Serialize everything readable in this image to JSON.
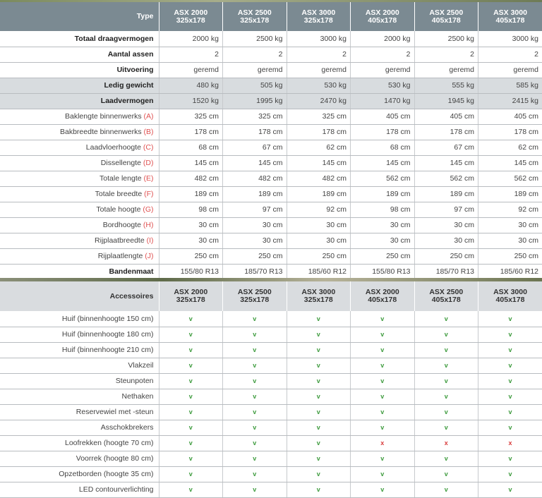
{
  "specs": {
    "header": {
      "label": "Type",
      "models": [
        {
          "name": "ASX 2000",
          "size": "325x178"
        },
        {
          "name": "ASX 2500",
          "size": "325x178"
        },
        {
          "name": "ASX 3000",
          "size": "325x178"
        },
        {
          "name": "ASX 2000",
          "size": "405x178"
        },
        {
          "name": "ASX 2500",
          "size": "405x178"
        },
        {
          "name": "ASX 3000",
          "size": "405x178"
        }
      ]
    },
    "rows": [
      {
        "label": "Totaal draagvermogen",
        "letter": "",
        "bold": true,
        "hl": false,
        "values": [
          "2000 kg",
          "2500 kg",
          "3000 kg",
          "2000 kg",
          "2500 kg",
          "3000 kg"
        ]
      },
      {
        "label": "Aantal assen",
        "letter": "",
        "bold": true,
        "hl": false,
        "values": [
          "2",
          "2",
          "2",
          "2",
          "2",
          "2"
        ]
      },
      {
        "label": "Uitvoering",
        "letter": "",
        "bold": true,
        "hl": false,
        "values": [
          "geremd",
          "geremd",
          "geremd",
          "geremd",
          "geremd",
          "geremd"
        ]
      },
      {
        "label": "Ledig gewicht",
        "letter": "",
        "bold": true,
        "hl": true,
        "values": [
          "480 kg",
          "505 kg",
          "530 kg",
          "530 kg",
          "555 kg",
          "585 kg"
        ]
      },
      {
        "label": "Laadvermogen",
        "letter": "",
        "bold": true,
        "hl": true,
        "values": [
          "1520 kg",
          "1995 kg",
          "2470 kg",
          "1470 kg",
          "1945 kg",
          "2415 kg"
        ]
      },
      {
        "label": "Baklengte binnenwerks ",
        "letter": "(A)",
        "bold": false,
        "hl": false,
        "values": [
          "325 cm",
          "325 cm",
          "325 cm",
          "405 cm",
          "405 cm",
          "405 cm"
        ]
      },
      {
        "label": "Bakbreedte binnenwerks ",
        "letter": "(B)",
        "bold": false,
        "hl": false,
        "values": [
          "178 cm",
          "178 cm",
          "178 cm",
          "178 cm",
          "178 cm",
          "178 cm"
        ]
      },
      {
        "label": "Laadvloerhoogte ",
        "letter": "(C)",
        "bold": false,
        "hl": false,
        "values": [
          "68 cm",
          "67 cm",
          "62 cm",
          "68 cm",
          "67 cm",
          "62 cm"
        ]
      },
      {
        "label": "Dissellengte ",
        "letter": "(D)",
        "bold": false,
        "hl": false,
        "values": [
          "145 cm",
          "145 cm",
          "145 cm",
          "145 cm",
          "145 cm",
          "145 cm"
        ]
      },
      {
        "label": "Totale lengte ",
        "letter": "(E)",
        "bold": false,
        "hl": false,
        "values": [
          "482 cm",
          "482 cm",
          "482 cm",
          "562 cm",
          "562 cm",
          "562 cm"
        ]
      },
      {
        "label": "Totale breedte ",
        "letter": "(F)",
        "bold": false,
        "hl": false,
        "values": [
          "189 cm",
          "189 cm",
          "189 cm",
          "189 cm",
          "189 cm",
          "189 cm"
        ]
      },
      {
        "label": "Totale hoogte ",
        "letter": "(G)",
        "bold": false,
        "hl": false,
        "values": [
          "98 cm",
          "97 cm",
          "92 cm",
          "98 cm",
          "97 cm",
          "92 cm"
        ]
      },
      {
        "label": "Bordhoogte ",
        "letter": "(H)",
        "bold": false,
        "hl": false,
        "values": [
          "30 cm",
          "30 cm",
          "30 cm",
          "30 cm",
          "30 cm",
          "30 cm"
        ]
      },
      {
        "label": "Rijplaatbreedte ",
        "letter": "(I)",
        "bold": false,
        "hl": false,
        "values": [
          "30 cm",
          "30 cm",
          "30 cm",
          "30 cm",
          "30 cm",
          "30 cm"
        ]
      },
      {
        "label": "Rijplaatlengte ",
        "letter": "(J)",
        "bold": false,
        "hl": false,
        "values": [
          "250 cm",
          "250 cm",
          "250 cm",
          "250 cm",
          "250 cm",
          "250 cm"
        ]
      },
      {
        "label": "Bandenmaat",
        "letter": "",
        "bold": true,
        "hl": false,
        "values": [
          "155/80 R13",
          "185/70 R13",
          "185/60 R12",
          "155/80 R13",
          "185/70 R13",
          "185/60 R12"
        ]
      }
    ]
  },
  "accessories": {
    "header": {
      "label": "Accessoires",
      "models": [
        {
          "name": "ASX 2000",
          "size": "325x178"
        },
        {
          "name": "ASX 2500",
          "size": "325x178"
        },
        {
          "name": "ASX 3000",
          "size": "325x178"
        },
        {
          "name": "ASX 2000",
          "size": "405x178"
        },
        {
          "name": "ASX 2500",
          "size": "405x178"
        },
        {
          "name": "ASX 3000",
          "size": "405x178"
        }
      ]
    },
    "rows": [
      {
        "label": "Huif (binnenhoogte 150 cm)",
        "values": [
          "v",
          "v",
          "v",
          "v",
          "v",
          "v"
        ]
      },
      {
        "label": "Huif (binnenhoogte 180 cm)",
        "values": [
          "v",
          "v",
          "v",
          "v",
          "v",
          "v"
        ]
      },
      {
        "label": "Huif (binnenhoogte 210 cm)",
        "values": [
          "v",
          "v",
          "v",
          "v",
          "v",
          "v"
        ]
      },
      {
        "label": "Vlakzeil",
        "values": [
          "v",
          "v",
          "v",
          "v",
          "v",
          "v"
        ]
      },
      {
        "label": "Steunpoten",
        "values": [
          "v",
          "v",
          "v",
          "v",
          "v",
          "v"
        ]
      },
      {
        "label": "Nethaken",
        "values": [
          "v",
          "v",
          "v",
          "v",
          "v",
          "v"
        ]
      },
      {
        "label": "Reservewiel met -steun",
        "values": [
          "v",
          "v",
          "v",
          "v",
          "v",
          "v"
        ]
      },
      {
        "label": "Asschokbrekers",
        "values": [
          "v",
          "v",
          "v",
          "v",
          "v",
          "v"
        ]
      },
      {
        "label": "Loofrekken (hoogte 70 cm)",
        "values": [
          "v",
          "v",
          "v",
          "x",
          "x",
          "x"
        ]
      },
      {
        "label": "Voorrek (hoogte 80 cm)",
        "values": [
          "v",
          "v",
          "v",
          "v",
          "v",
          "v"
        ]
      },
      {
        "label": "Opzetborden (hoogte 35 cm)",
        "values": [
          "v",
          "v",
          "v",
          "v",
          "v",
          "v"
        ]
      },
      {
        "label": "LED contourverlichting",
        "values": [
          "v",
          "v",
          "v",
          "v",
          "v",
          "v"
        ]
      }
    ]
  }
}
